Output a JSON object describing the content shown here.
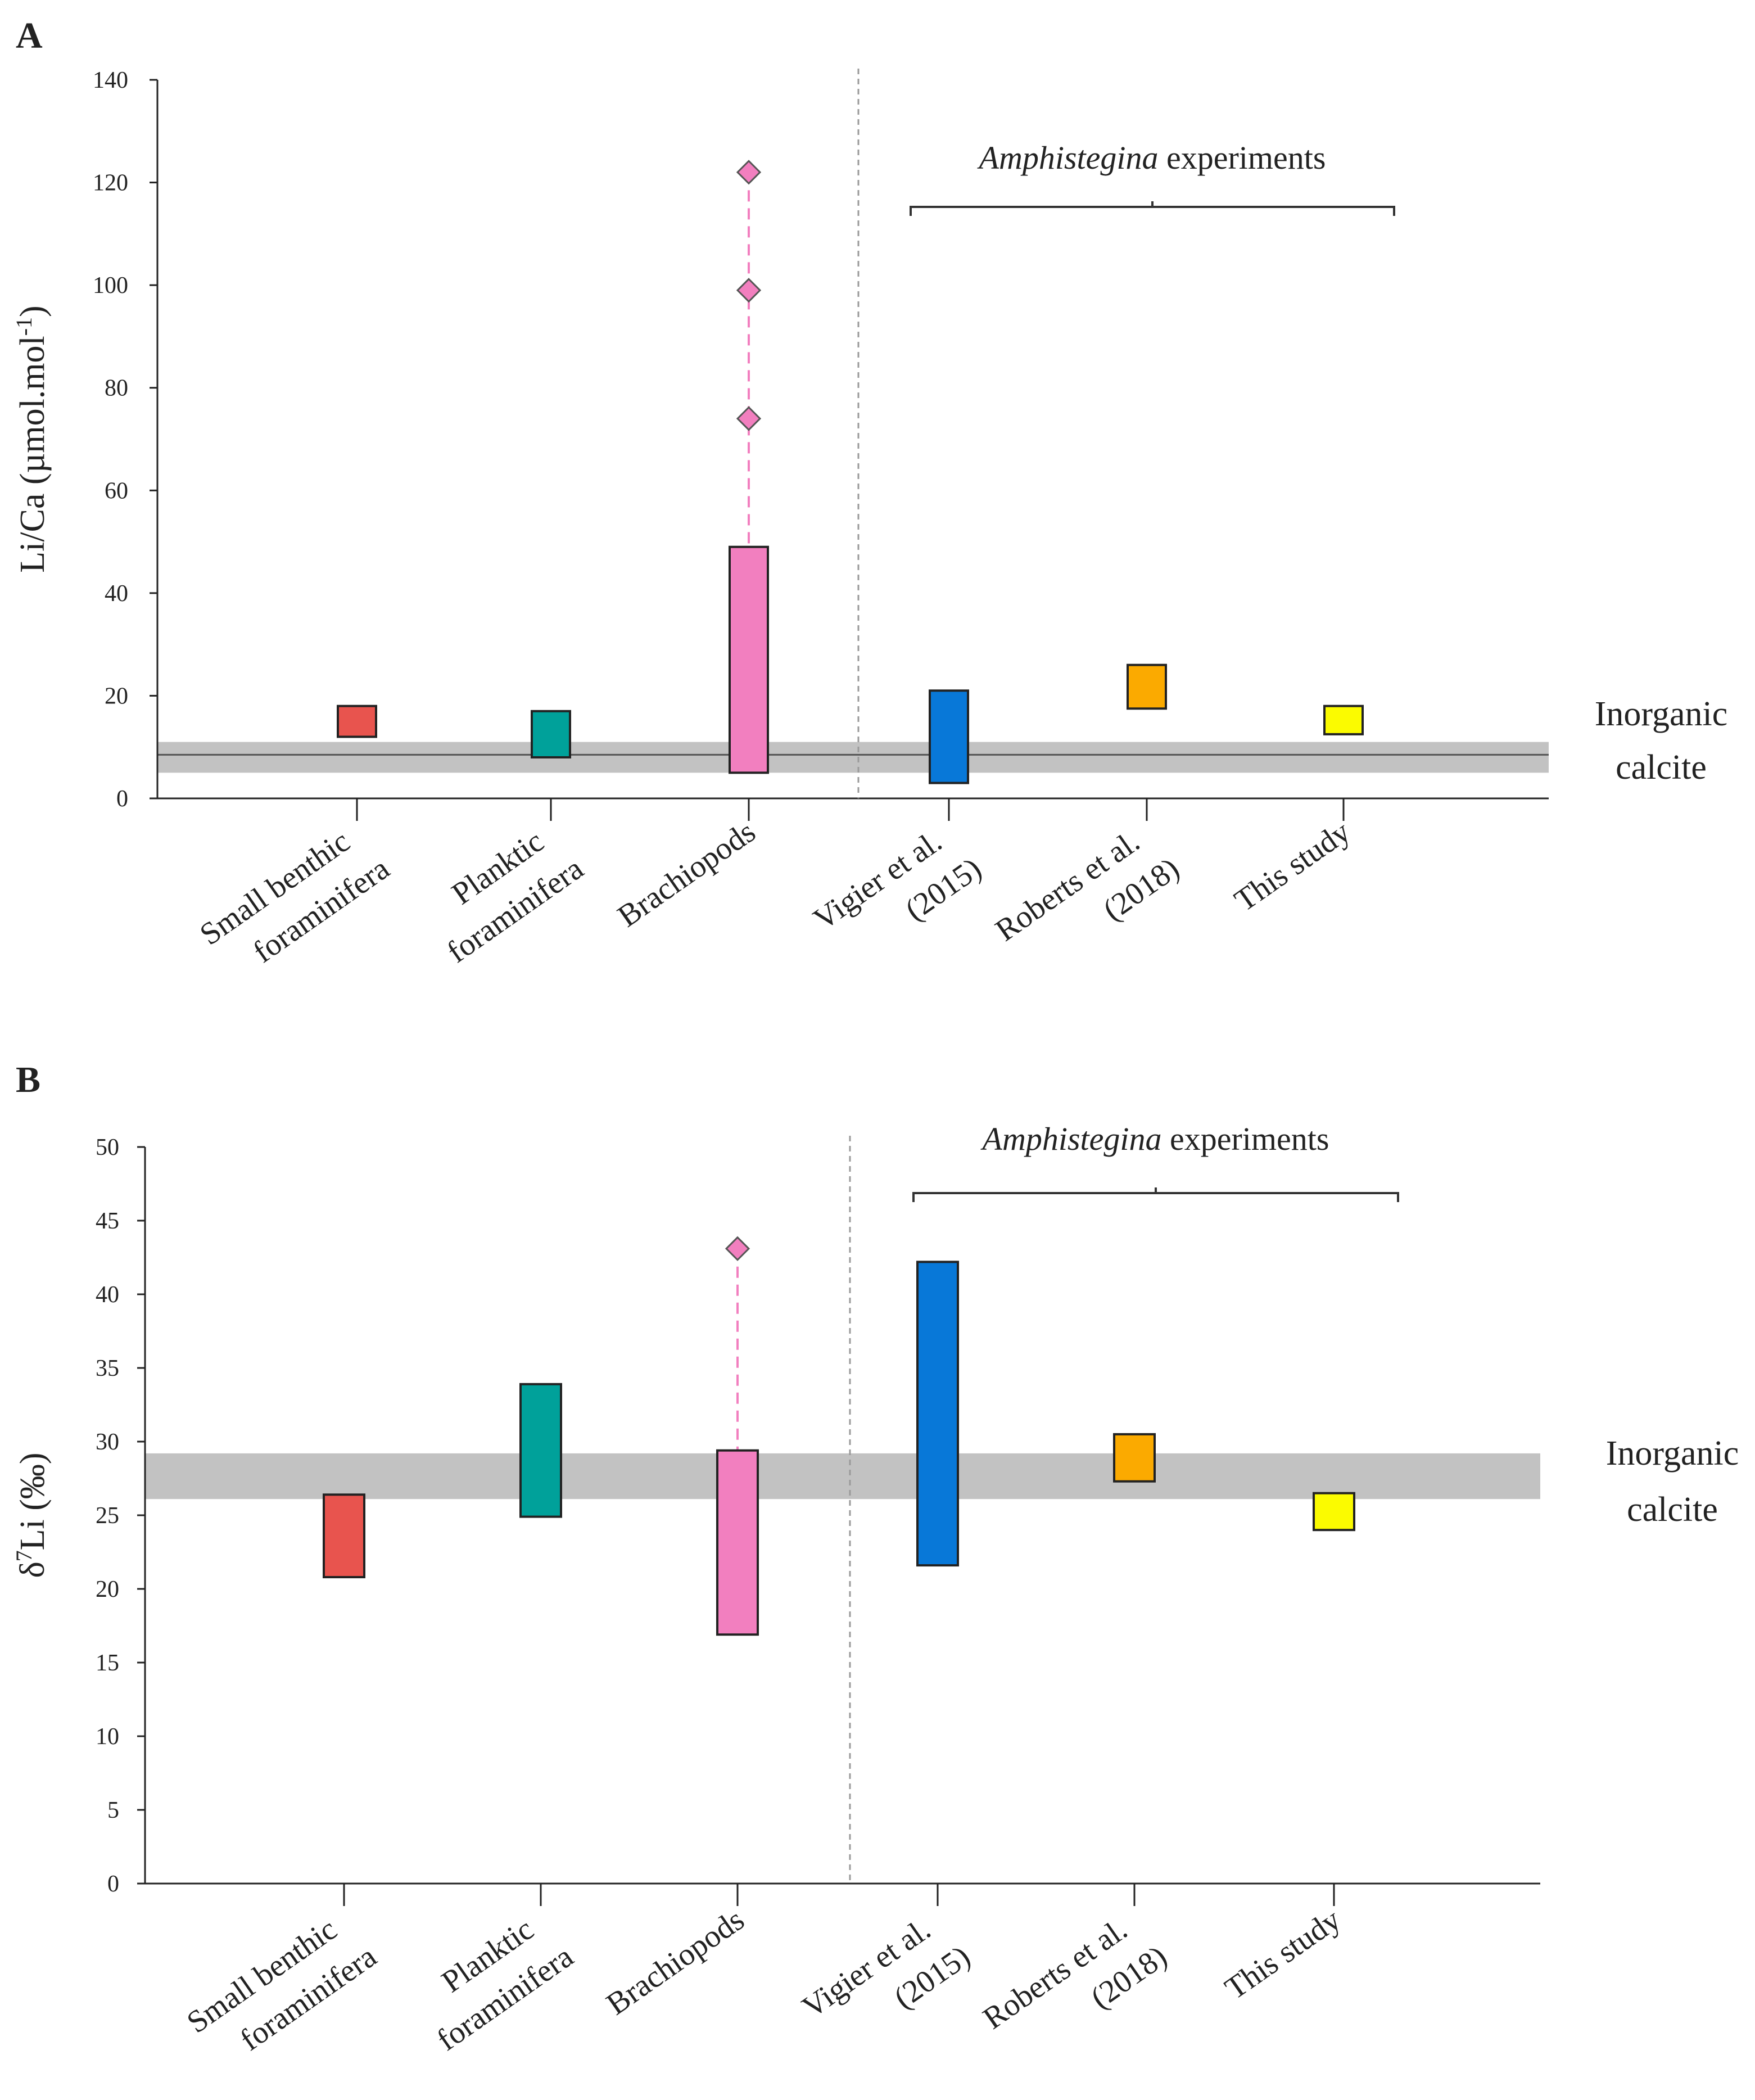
{
  "chart_data": [
    {
      "panel_label": "A",
      "type": "floating-bar",
      "ylabel": {
        "main": "Li/Ca (µmol.mol",
        "sup": "-1",
        "tail": ")"
      },
      "ylim": [
        0,
        140
      ],
      "yticks": [
        {
          "v": 0,
          "label": "0"
        },
        {
          "v": 20,
          "label": "20"
        },
        {
          "v": 40,
          "label": "40"
        },
        {
          "v": 60,
          "label": "60"
        },
        {
          "v": 80,
          "label": "80"
        },
        {
          "v": 100,
          "label": "100"
        },
        {
          "v": 120,
          "label": "120"
        },
        {
          "v": 140,
          "label": "140"
        }
      ],
      "categories": [
        {
          "lines": [
            "Small benthic",
            "foraminifera"
          ],
          "low": 12.0,
          "high": 18.0,
          "color": "#e8544e"
        },
        {
          "lines": [
            "Planktic",
            "foraminifera"
          ],
          "low": 8.0,
          "high": 17.0,
          "color": "#00a19a"
        },
        {
          "lines": [
            "Brachiopods"
          ],
          "low": 5.0,
          "high": 49.0,
          "color": "#f27fbf",
          "outliers": [
            74,
            99,
            122
          ]
        },
        {
          "lines": [
            "Vigier et al.",
            "(2015)"
          ],
          "low": 3.0,
          "high": 21.0,
          "color": "#0878d8"
        },
        {
          "lines": [
            "Roberts et al.",
            "(2018)"
          ],
          "low": 17.5,
          "high": 26.0,
          "color": "#fbaa00"
        },
        {
          "lines": [
            "This study"
          ],
          "low": 12.5,
          "high": 18.0,
          "color": "#fbfb00"
        }
      ],
      "reference": {
        "label_lines": [
          "Inorganic",
          "calcite"
        ],
        "low": 5.0,
        "high": 11.0,
        "mean": 8.5,
        "color": "#c2c2c2"
      },
      "annotation": {
        "italic": "Amphistegina",
        "rest": " experiments",
        "spans": "Vigier et al. (2015) – This study"
      },
      "divider_after": "Brachiopods"
    },
    {
      "panel_label": "B",
      "type": "floating-bar",
      "ylabel": {
        "main": "δ",
        "sup": "7",
        "tail": "Li (‰)"
      },
      "ylim": [
        0,
        50
      ],
      "yticks": [
        {
          "v": 0,
          "label": "0"
        },
        {
          "v": 5,
          "label": "5"
        },
        {
          "v": 10,
          "label": "10"
        },
        {
          "v": 15,
          "label": "15"
        },
        {
          "v": 20,
          "label": "20"
        },
        {
          "v": 25,
          "label": "25"
        },
        {
          "v": 30,
          "label": "30"
        },
        {
          "v": 35,
          "label": "35"
        },
        {
          "v": 40,
          "label": "40"
        },
        {
          "v": 45,
          "label": "45"
        },
        {
          "v": 50,
          "label": "50"
        }
      ],
      "categories": [
        {
          "lines": [
            "Small benthic",
            "foraminifera"
          ],
          "low": 20.8,
          "high": 26.4,
          "color": "#e8544e"
        },
        {
          "lines": [
            "Planktic",
            "foraminifera"
          ],
          "low": 24.9,
          "high": 33.9,
          "color": "#00a19a"
        },
        {
          "lines": [
            "Brachiopods"
          ],
          "low": 16.9,
          "high": 29.4,
          "color": "#f27fbf",
          "outliers": [
            43.1
          ]
        },
        {
          "lines": [
            "Vigier et al.",
            "(2015)"
          ],
          "low": 21.6,
          "high": 42.2,
          "color": "#0878d8"
        },
        {
          "lines": [
            "Roberts et al.",
            "(2018)"
          ],
          "low": 27.3,
          "high": 30.5,
          "color": "#fbaa00"
        },
        {
          "lines": [
            "This study"
          ],
          "low": 24.0,
          "high": 26.5,
          "color": "#fbfb00"
        }
      ],
      "reference": {
        "label_lines": [
          "Inorganic",
          "calcite"
        ],
        "low": 26.1,
        "high": 29.2,
        "color": "#c2c2c2"
      },
      "annotation": {
        "italic": "Amphistegina",
        "rest": " experiments",
        "spans": "Vigier et al. (2015) – This study"
      },
      "divider_after": "Brachiopods"
    }
  ]
}
